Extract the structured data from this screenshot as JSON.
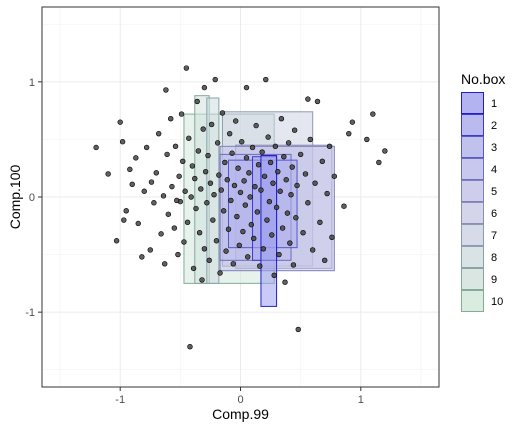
{
  "chart_data": {
    "type": "scatter",
    "xlabel": "Comp.99",
    "ylabel": "Comp.100",
    "xlim": [
      -1.65,
      1.65
    ],
    "ylim": [
      -1.65,
      1.65
    ],
    "x_ticks": [
      -1,
      0,
      1
    ],
    "x_tick_labels": [
      "-1",
      "0",
      "1"
    ],
    "y_ticks": [
      -1,
      0,
      1
    ],
    "y_tick_labels": [
      "-1",
      "0",
      "1"
    ],
    "grid": true,
    "legend_placement": "right",
    "legend": {
      "title": "No.box",
      "entries": [
        {
          "label": "1",
          "fill": "#9E9EF0",
          "stroke": "#1E1ECC"
        },
        {
          "label": "2",
          "fill": "#A7A7EE",
          "stroke": "#3C3CC8"
        },
        {
          "label": "3",
          "fill": "#B0B0EC",
          "stroke": "#5858C6"
        },
        {
          "label": "4",
          "fill": "#B9B9EC",
          "stroke": "#6E6EBE"
        },
        {
          "label": "5",
          "fill": "#C2C2EA",
          "stroke": "#8080BA"
        },
        {
          "label": "6",
          "fill": "#C9C9E8",
          "stroke": "#8E8EB4"
        },
        {
          "label": "7",
          "fill": "#CED2E4",
          "stroke": "#8E9AB2"
        },
        {
          "label": "8",
          "fill": "#D0DCE0",
          "stroke": "#8AA2AA"
        },
        {
          "label": "9",
          "fill": "#D0E2DC",
          "stroke": "#86A89C"
        },
        {
          "label": "10",
          "fill": "#D2E8DA",
          "stroke": "#82AE96"
        }
      ]
    },
    "boxes": [
      {
        "label": "10",
        "xmin": -0.47,
        "xmax": 0.28,
        "ymin": -0.75,
        "ymax": 0.72
      },
      {
        "label": "9",
        "xmin": -0.38,
        "xmax": -0.26,
        "ymin": -0.75,
        "ymax": 0.88
      },
      {
        "label": "8",
        "xmin": -0.28,
        "xmax": -0.18,
        "ymin": -0.75,
        "ymax": 0.86
      },
      {
        "label": "7",
        "xmin": -0.15,
        "xmax": 0.6,
        "ymin": -0.6,
        "ymax": 0.74
      },
      {
        "label": "6",
        "xmin": -0.04,
        "xmax": 0.76,
        "ymin": -0.62,
        "ymax": 0.45
      },
      {
        "label": "5",
        "xmin": -0.17,
        "xmax": 0.78,
        "ymin": -0.64,
        "ymax": 0.44
      },
      {
        "label": "4",
        "xmin": -0.17,
        "xmax": 0.42,
        "ymin": -0.55,
        "ymax": 0.37
      },
      {
        "label": "3",
        "xmin": -0.1,
        "xmax": 0.47,
        "ymin": -0.44,
        "ymax": 0.32
      },
      {
        "label": "2",
        "xmin": 0.1,
        "xmax": 0.3,
        "ymin": -0.55,
        "ymax": 0.35
      },
      {
        "label": "1",
        "xmin": 0.17,
        "xmax": 0.3,
        "ymin": -0.95,
        "ymax": 0.36
      }
    ],
    "points": [
      [
        -1.2,
        0.43
      ],
      [
        -1.1,
        0.2
      ],
      [
        -1.03,
        -0.38
      ],
      [
        -1.0,
        0.65
      ],
      [
        -0.98,
        0.48
      ],
      [
        -0.95,
        -0.12
      ],
      [
        -0.92,
        0.24
      ],
      [
        -0.9,
        0.11
      ],
      [
        -0.87,
        0.34
      ],
      [
        -0.85,
        -0.23
      ],
      [
        -0.82,
        -0.52
      ],
      [
        -0.8,
        0.05
      ],
      [
        -0.78,
        0.43
      ],
      [
        -0.75,
        -0.46
      ],
      [
        -0.74,
        0.13
      ],
      [
        -0.72,
        -0.05
      ],
      [
        -0.7,
        0.21
      ],
      [
        -0.68,
        0.55
      ],
      [
        -0.66,
        -0.32
      ],
      [
        -0.64,
        0.01
      ],
      [
        -0.63,
        -0.58
      ],
      [
        -0.61,
        0.37
      ],
      [
        -0.6,
        -0.15
      ],
      [
        -0.58,
        0.68
      ],
      [
        -0.57,
        0.09
      ],
      [
        -0.55,
        -0.27
      ],
      [
        -0.54,
        0.44
      ],
      [
        -0.52,
        -0.5
      ],
      [
        -0.51,
        0.18
      ],
      [
        -0.5,
        -0.04
      ],
      [
        -0.49,
        0.72
      ],
      [
        -0.48,
        0.31
      ],
      [
        -0.47,
        -0.39
      ],
      [
        -0.46,
        0.05
      ],
      [
        -0.45,
        1.12
      ],
      [
        -0.44,
        -0.22
      ],
      [
        -0.43,
        0.51
      ],
      [
        -0.42,
        -1.3
      ],
      [
        -0.41,
        0.0
      ],
      [
        -0.4,
        0.27
      ],
      [
        -0.39,
        -0.62
      ],
      [
        -0.38,
        0.16
      ],
      [
        -0.37,
        -0.1
      ],
      [
        -0.36,
        0.83
      ],
      [
        -0.35,
        0.4
      ],
      [
        -0.34,
        -0.31
      ],
      [
        -0.33,
        0.07
      ],
      [
        -0.32,
        -0.72
      ],
      [
        -0.31,
        0.59
      ],
      [
        -0.3,
        -0.45
      ],
      [
        -0.29,
        0.22
      ],
      [
        -0.28,
        -0.05
      ],
      [
        -0.27,
        0.36
      ],
      [
        -0.26,
        -0.55
      ],
      [
        -0.25,
        0.12
      ],
      [
        -0.24,
        0.63
      ],
      [
        -0.23,
        -0.2
      ],
      [
        -0.22,
        0.02
      ],
      [
        -0.21,
        1.02
      ],
      [
        -0.2,
        -0.38
      ],
      [
        -0.19,
        0.47
      ],
      [
        -0.18,
        0.19
      ],
      [
        -0.17,
        -0.66
      ],
      [
        -0.16,
        0.06
      ],
      [
        -0.15,
        0.73
      ],
      [
        -0.14,
        -0.12
      ],
      [
        -0.13,
        0.3
      ],
      [
        -0.12,
        -0.47
      ],
      [
        -0.11,
        0.15
      ],
      [
        -0.1,
        -0.28
      ],
      [
        -0.09,
        0.55
      ],
      [
        -0.08,
        -0.03
      ],
      [
        -0.07,
        0.38
      ],
      [
        -0.06,
        -0.58
      ],
      [
        -0.05,
        0.1
      ],
      [
        -0.04,
        0.66
      ],
      [
        -0.03,
        -0.17
      ],
      [
        -0.02,
        0.25
      ],
      [
        -0.01,
        -0.42
      ],
      [
        0.0,
        0.04
      ],
      [
        0.01,
        0.48
      ],
      [
        0.02,
        -0.3
      ],
      [
        0.03,
        0.14
      ],
      [
        0.04,
        -0.07
      ],
      [
        0.05,
        0.34
      ],
      [
        0.06,
        -0.52
      ],
      [
        0.07,
        0.21
      ],
      [
        0.08,
        0.0
      ],
      [
        0.09,
        -0.24
      ],
      [
        0.1,
        0.43
      ],
      [
        0.11,
        -0.36
      ],
      [
        0.12,
        0.09
      ],
      [
        0.13,
        0.62
      ],
      [
        0.14,
        -0.13
      ],
      [
        0.15,
        0.28
      ],
      [
        0.16,
        -0.6
      ],
      [
        0.17,
        0.06
      ],
      [
        0.18,
        0.39
      ],
      [
        0.19,
        -0.45
      ],
      [
        0.2,
        0.18
      ],
      [
        0.21,
        1.02
      ],
      [
        0.22,
        -0.2
      ],
      [
        0.23,
        0.52
      ],
      [
        0.24,
        -0.04
      ],
      [
        0.25,
        0.3
      ],
      [
        0.26,
        -0.33
      ],
      [
        0.27,
        0.12
      ],
      [
        0.28,
        -0.68
      ],
      [
        0.29,
        0.44
      ],
      [
        0.3,
        -0.09
      ],
      [
        0.31,
        0.22
      ],
      [
        0.32,
        -0.5
      ],
      [
        0.33,
        0.05
      ],
      [
        0.34,
        0.68
      ],
      [
        0.35,
        -0.27
      ],
      [
        0.36,
        0.35
      ],
      [
        0.37,
        -0.74
      ],
      [
        0.38,
        0.15
      ],
      [
        0.39,
        -0.14
      ],
      [
        0.4,
        0.47
      ],
      [
        0.41,
        -0.4
      ],
      [
        0.42,
        0.02
      ],
      [
        0.43,
        0.26
      ],
      [
        0.44,
        -0.59
      ],
      [
        0.45,
        0.58
      ],
      [
        0.46,
        -0.18
      ],
      [
        0.47,
        0.1
      ],
      [
        0.48,
        -1.15
      ],
      [
        0.5,
        0.37
      ],
      [
        0.52,
        -0.31
      ],
      [
        0.54,
        0.2
      ],
      [
        0.56,
        -0.05
      ],
      [
        0.58,
        0.5
      ],
      [
        0.6,
        -0.46
      ],
      [
        0.62,
        0.12
      ],
      [
        0.64,
        0.83
      ],
      [
        0.66,
        -0.22
      ],
      [
        0.68,
        0.31
      ],
      [
        0.7,
        -0.55
      ],
      [
        0.72,
        0.03
      ],
      [
        0.74,
        0.44
      ],
      [
        0.76,
        -0.35
      ],
      [
        0.78,
        0.18
      ],
      [
        0.9,
        0.55
      ],
      [
        0.93,
        0.65
      ],
      [
        1.05,
        0.5
      ],
      [
        1.1,
        0.72
      ],
      [
        1.15,
        0.3
      ],
      [
        1.2,
        0.4
      ],
      [
        0.86,
        -0.08
      ],
      [
        -0.97,
        -0.2
      ],
      [
        -0.53,
        -0.03
      ],
      [
        0.05,
        0.95
      ],
      [
        -0.62,
        0.93
      ],
      [
        0.56,
        0.85
      ],
      [
        -0.3,
        0.95
      ]
    ]
  }
}
